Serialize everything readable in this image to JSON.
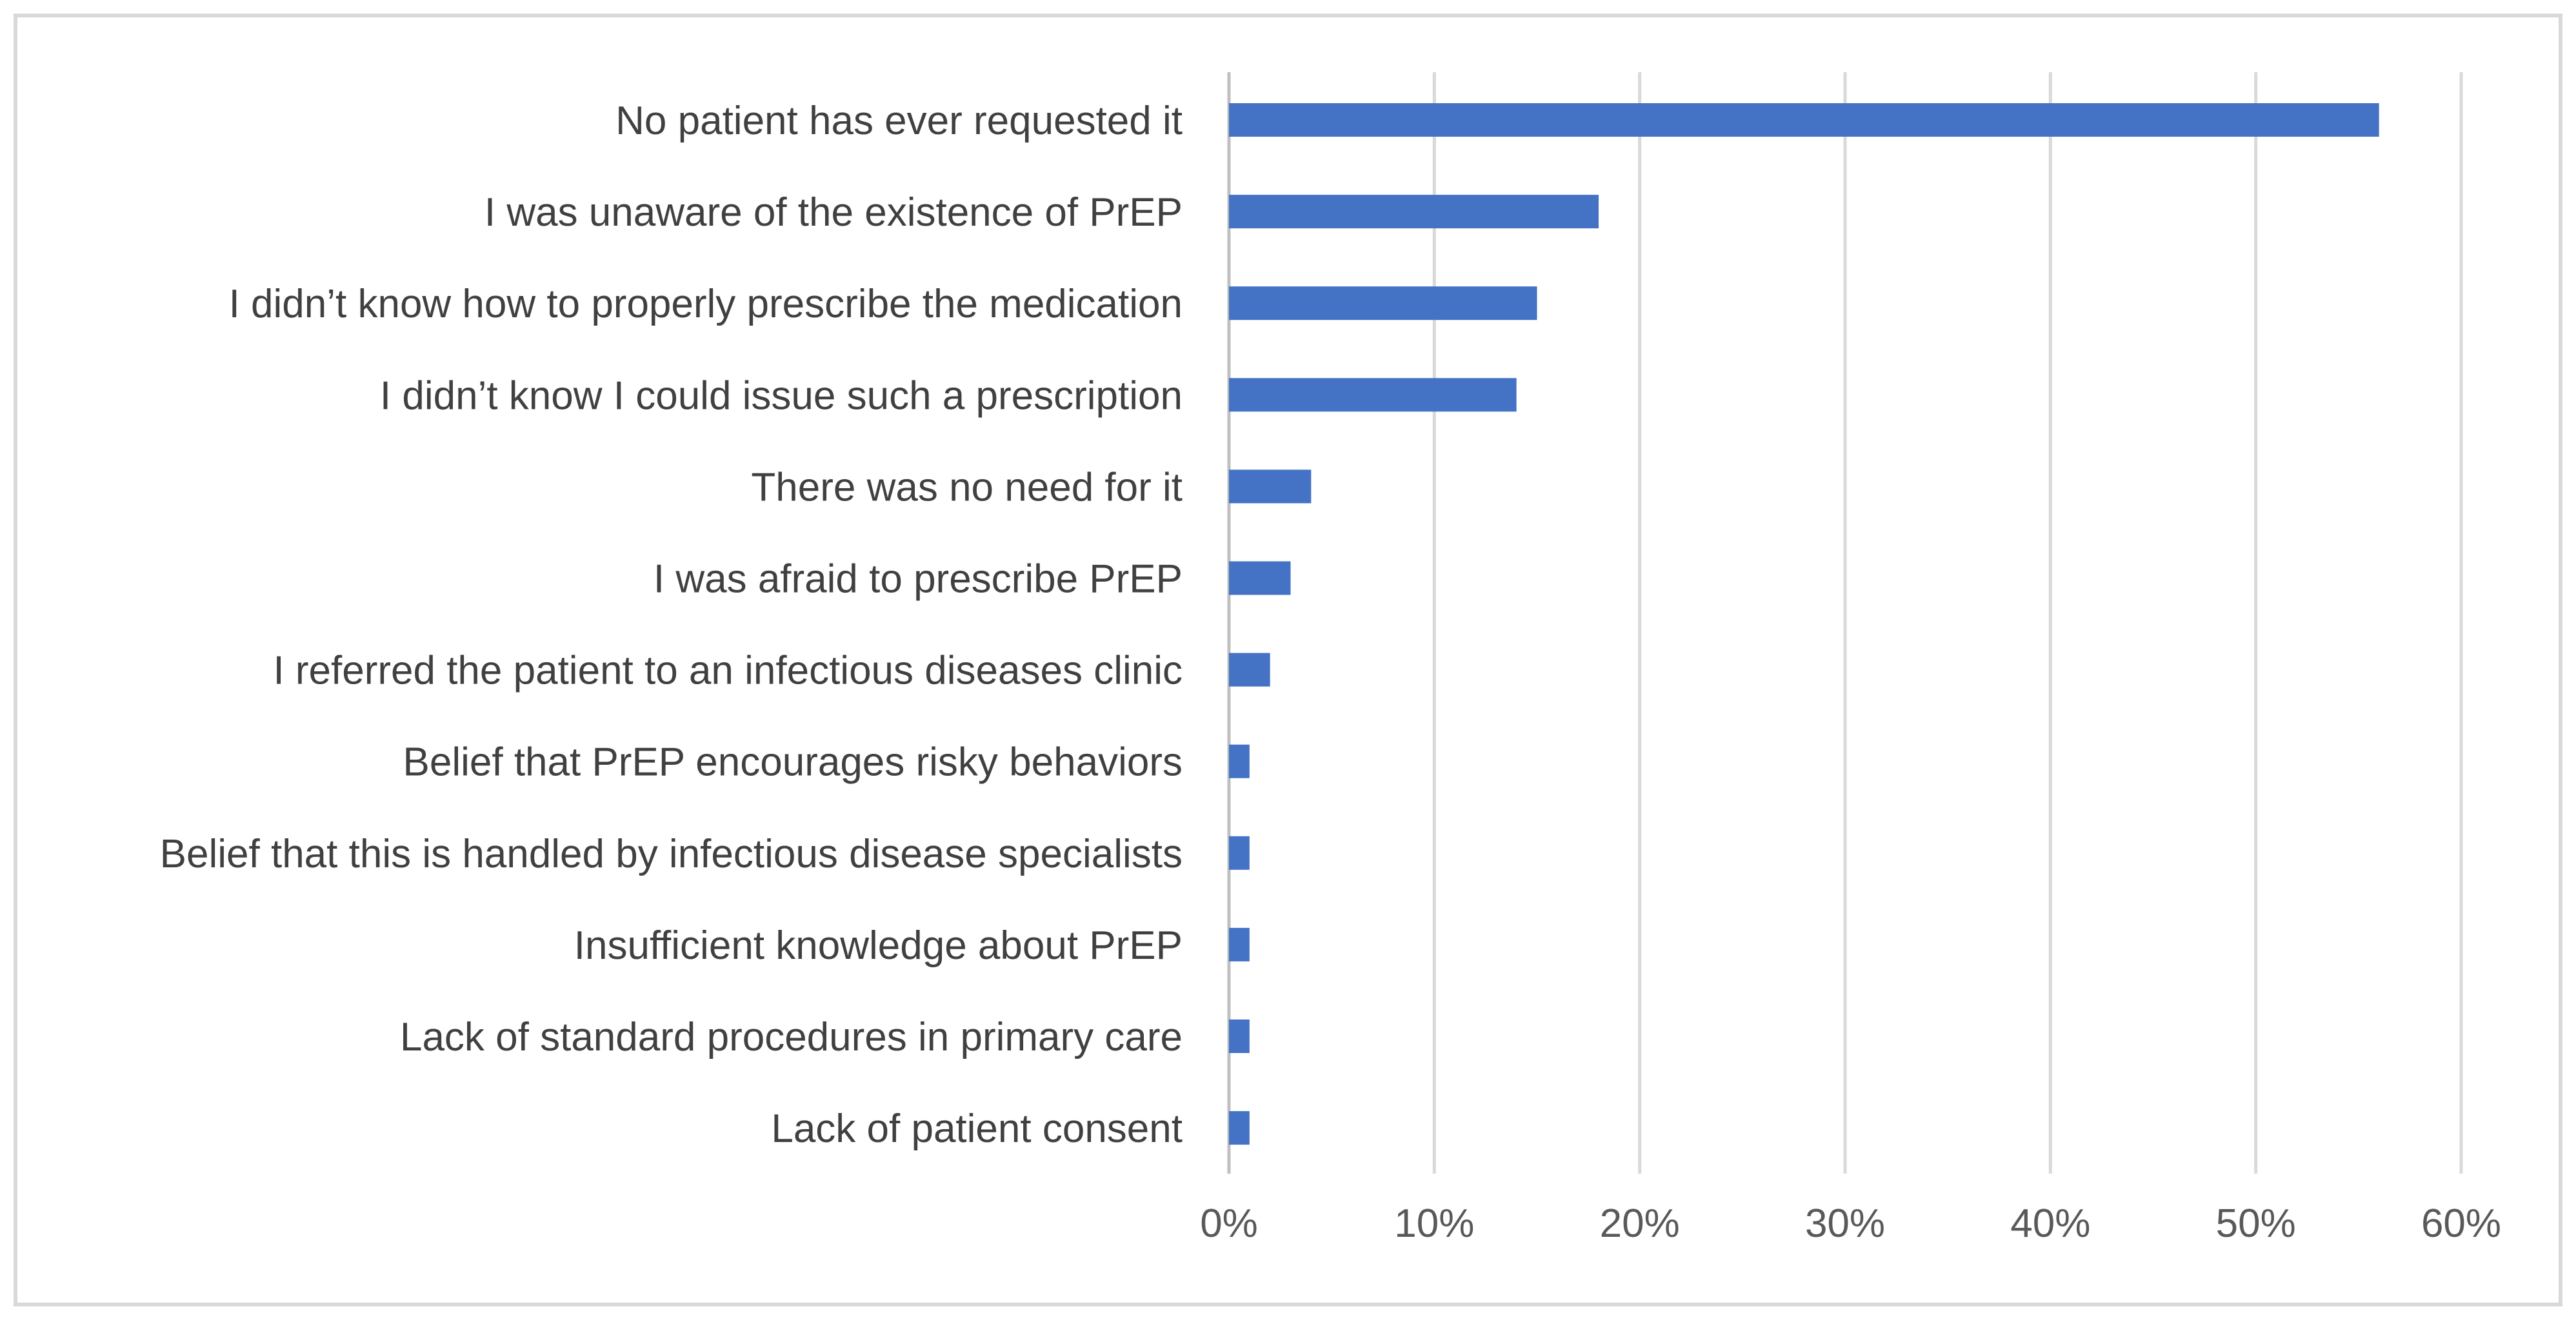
{
  "chart_data": {
    "type": "bar",
    "orientation": "horizontal",
    "title": "",
    "xlabel": "",
    "ylabel": "",
    "categories": [
      "No patient has ever requested it",
      "I was unaware of the existence of PrEP",
      "I didn’t know how to properly prescribe the medication",
      "I didn’t know I could issue such a prescription",
      "There was no need for it",
      "I was afraid to prescribe PrEP",
      "I referred the patient to an infectious diseases clinic",
      "Belief that PrEP encourages risky behaviors",
      "Belief that this is handled by infectious disease specialists",
      "Insufficient knowledge about PrEP",
      "Lack of standard procedures in primary care",
      "Lack of patient consent"
    ],
    "values": [
      56,
      18,
      15,
      14,
      4,
      3,
      2,
      1,
      1,
      1,
      1,
      1
    ],
    "unit": "%",
    "xlim": [
      0,
      60
    ],
    "x_ticks": [
      0,
      10,
      20,
      30,
      40,
      50,
      60
    ],
    "x_tick_labels": [
      "0%",
      "10%",
      "20%",
      "30%",
      "40%",
      "50%",
      "60%"
    ],
    "grid": "vertical",
    "legend": "none",
    "colors": {
      "bar": "#4472C4",
      "gridline": "#D9D9D9",
      "frame": "#D9D9D9",
      "axis_text": "#595959",
      "category_text": "#404040",
      "background": "#FFFFFF"
    }
  }
}
